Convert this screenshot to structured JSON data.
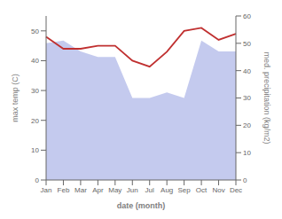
{
  "chart_data": {
    "type": "line",
    "xlabel": "date (month)",
    "ylabel": "max temp (C)",
    "y2label": "med. precipitation (kg/m2)",
    "categories": [
      "Jan",
      "Feb",
      "Mar",
      "Apr",
      "May",
      "Jun",
      "Jul",
      "Aug",
      "Sep",
      "Oct",
      "Nov",
      "Dec"
    ],
    "series": [
      {
        "type": "area",
        "axis": "y2",
        "color": "#b0b8e8",
        "values": [
          50,
          51,
          47,
          45,
          45,
          30,
          30,
          32,
          30,
          51,
          47,
          47
        ]
      },
      {
        "type": "line",
        "color": "#c03030",
        "values": [
          48,
          44,
          44,
          45,
          45,
          40,
          38,
          43,
          50,
          51,
          47,
          49
        ]
      }
    ],
    "ylim": [
      0,
      55
    ],
    "yticks": [
      0,
      10,
      20,
      30,
      40,
      50
    ],
    "y2lim": [
      0,
      60
    ],
    "y2ticks": [
      0,
      10,
      20,
      30,
      40,
      50,
      60
    ]
  }
}
